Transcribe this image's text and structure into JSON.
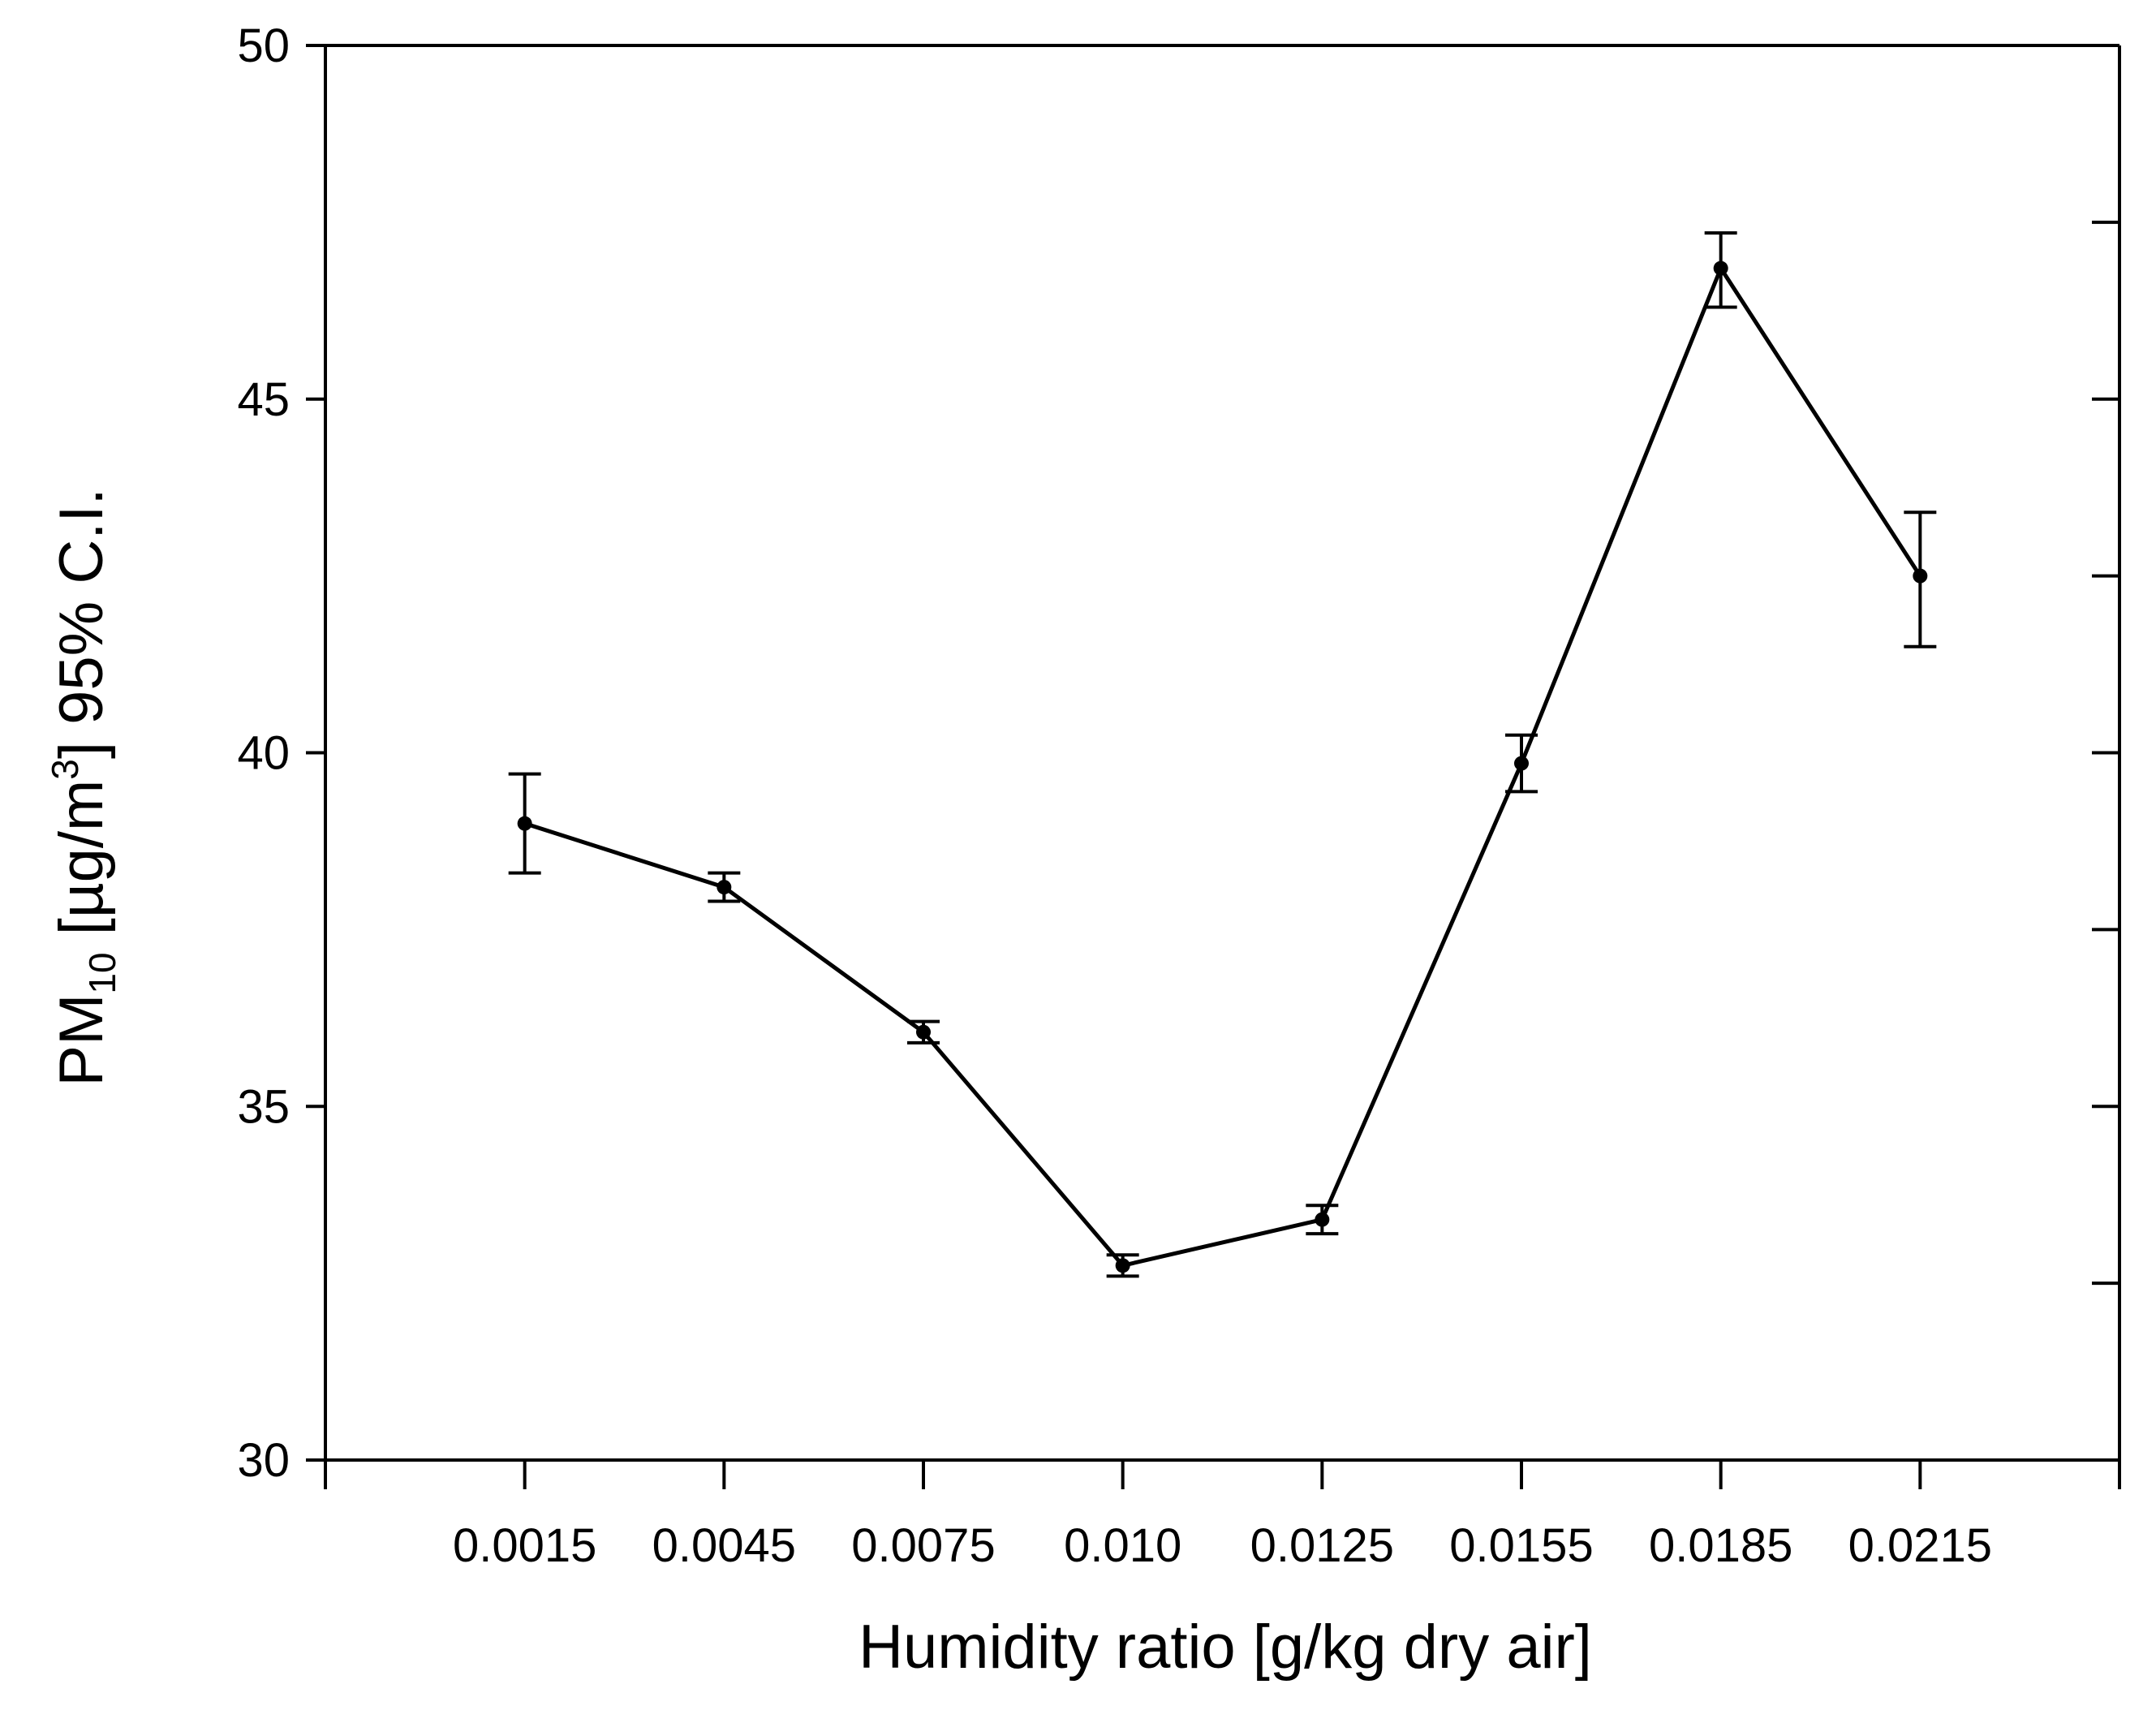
{
  "colors": {
    "background": "#ffffff",
    "foreground": "#000000"
  },
  "chart_data": {
    "type": "line",
    "title": "",
    "xlabel": "Humidity ratio [g/kg dry air]",
    "ylabel": {
      "prefix": "PM",
      "subscript": "10",
      "middle": " [µg/m",
      "superscript": "3",
      "suffix": "] 95% C.I."
    },
    "categories": [
      "0.0015",
      "0.0045",
      "0.0075",
      "0.010",
      "0.0125",
      "0.0155",
      "0.0185",
      "0.0215"
    ],
    "series": [
      {
        "values": [
          39.0,
          38.1,
          36.05,
          32.75,
          33.4,
          39.85,
          46.85,
          42.5
        ],
        "error_low": [
          38.3,
          37.9,
          35.9,
          32.6,
          33.2,
          39.45,
          46.3,
          41.5
        ],
        "error_high": [
          39.7,
          38.3,
          36.2,
          32.9,
          33.6,
          40.25,
          47.35,
          43.4
        ]
      }
    ],
    "ylim": [
      30,
      50
    ],
    "yticks": [
      30,
      35,
      40,
      45,
      50
    ],
    "ytick_labels": [
      "30",
      "35",
      "40",
      "45",
      "50"
    ],
    "y_minor_step": 2.5,
    "marker": "filled circle",
    "line_style": "solid",
    "error_bars": true,
    "frame": "box",
    "grid": false,
    "legend": "none"
  }
}
